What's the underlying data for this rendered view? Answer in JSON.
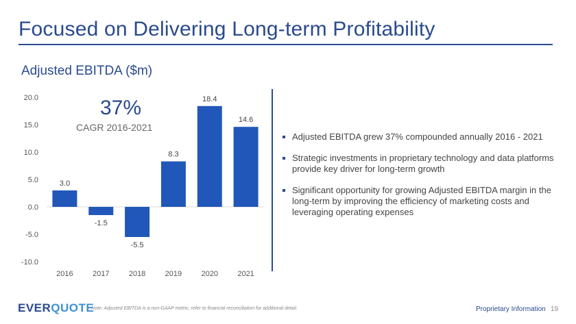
{
  "slide": {
    "title": "Focused on Delivering Long-term Profitability",
    "chart_heading": "Adjusted EBITDA ($m)",
    "cagr": {
      "value": "37%",
      "label": "CAGR 2016-2021"
    },
    "bullets": [
      "Adjusted EBITDA grew 37% compounded annually 2016 - 2021",
      "Strategic investments in proprietary technology and data platforms provide key driver for long-term growth",
      "Significant opportunity for growing Adjusted EBITDA margin in the long-term by improving the efficiency of marketing costs and leveraging operating expenses"
    ],
    "footer": {
      "logo_part_a": "EVER",
      "logo_part_b": "QUOTE",
      "note": "Note: Adjusted EBITDA is a non-GAAP metric; refer to financial reconciliation for additional detail.",
      "proprietary": "Proprietary Information",
      "page_number": "19"
    }
  },
  "colors": {
    "brand_navy": "#2a4a8e",
    "bar_fill": "#2157b8",
    "logo_light": "#3d8fd6"
  },
  "chart_data": {
    "type": "bar",
    "title": "Adjusted EBITDA ($m)",
    "xlabel": "",
    "ylabel": "",
    "categories": [
      "2016",
      "2017",
      "2018",
      "2019",
      "2020",
      "2021"
    ],
    "values": [
      3.0,
      -1.5,
      -5.5,
      8.3,
      18.4,
      14.6
    ],
    "value_labels": [
      "3.0",
      "-1.5",
      "-5.5",
      "8.3",
      "18.4",
      "14.6"
    ],
    "ylim": [
      -10,
      20
    ],
    "y_ticks": [
      20,
      15,
      10,
      5,
      0,
      -5,
      -10
    ],
    "y_tick_labels": [
      "20.0",
      "15.0",
      "10.0",
      "5.0",
      "0.0",
      "-5.0",
      "-10.0"
    ],
    "grid": false,
    "annotation": {
      "text": "37%",
      "subtext": "CAGR 2016-2021"
    }
  }
}
